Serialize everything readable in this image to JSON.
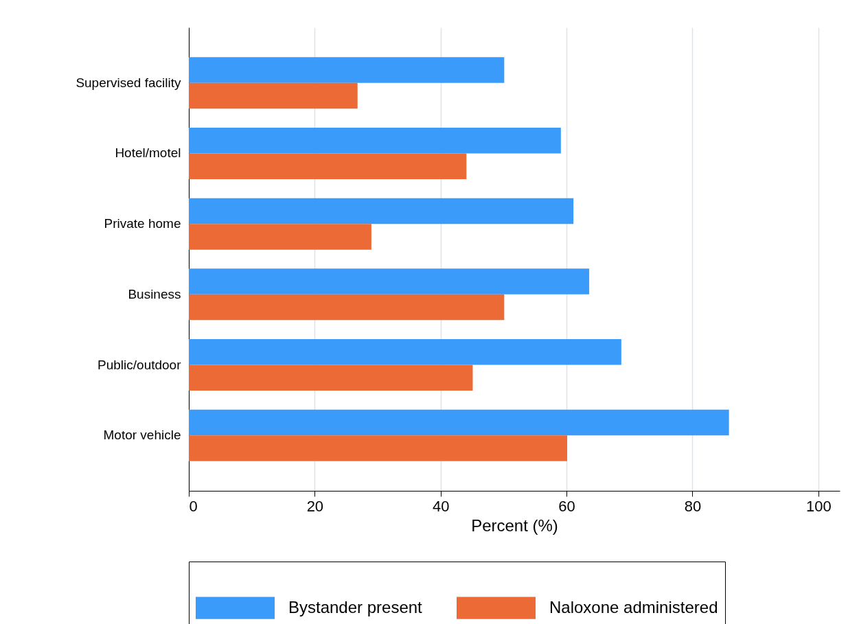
{
  "chart_data": {
    "type": "bar",
    "orientation": "horizontal",
    "xlabel": "Percent (%)",
    "categories": [
      "Supervised facility",
      "Hotel/motel",
      "Private home",
      "Business",
      "Public/outdoor",
      "Motor vehicle"
    ],
    "series": [
      {
        "name": "Bystander present",
        "color": "#3a9bfa",
        "values": [
          50.1,
          59.1,
          61.1,
          63.6,
          68.7,
          85.8
        ]
      },
      {
        "name": "Naloxone administered",
        "color": "#ec6a35",
        "values": [
          26.8,
          44.1,
          29.0,
          50.1,
          45.1,
          60.1
        ]
      }
    ],
    "xlim": [
      0,
      103.4
    ],
    "xticks": [
      0,
      20,
      40,
      60,
      80,
      100
    ],
    "grid": "x",
    "legend": "bottom"
  }
}
